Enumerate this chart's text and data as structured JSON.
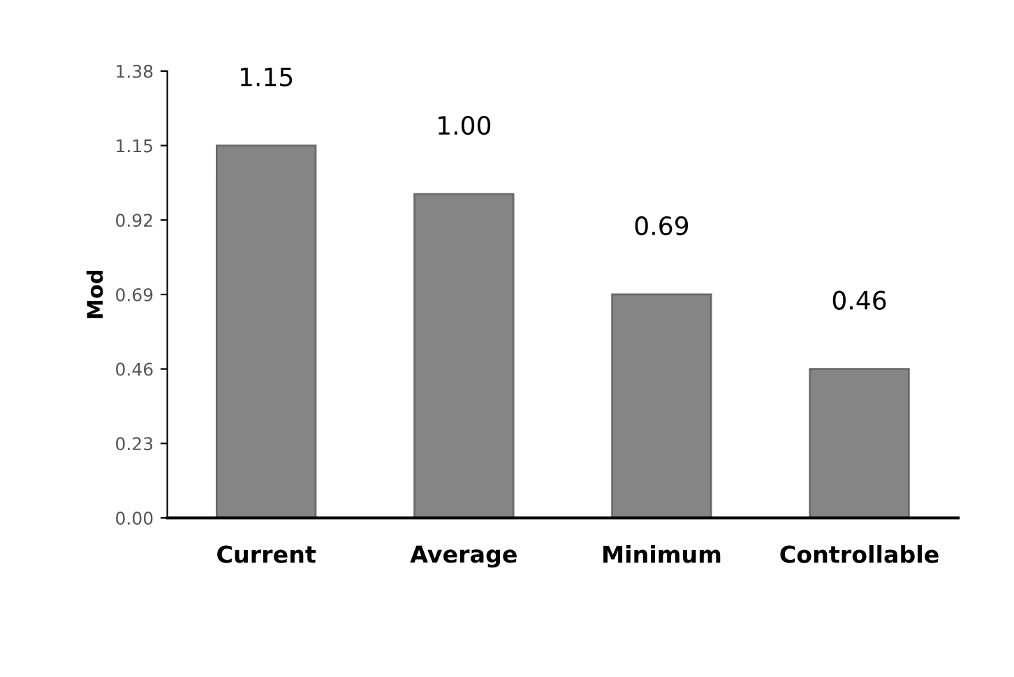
{
  "chart_data": {
    "type": "bar",
    "ylabel": "Mod",
    "categories": [
      "Current",
      "Average",
      "Minimum",
      "Controllable"
    ],
    "values": [
      1.15,
      1.0,
      0.69,
      0.46
    ],
    "value_labels": [
      "1.15",
      "1.00",
      "0.69",
      "0.46"
    ],
    "color": "#858585",
    "ylim": [
      0,
      1.38
    ],
    "yticks": [
      {
        "value": 0,
        "label": "0.00"
      },
      0.23,
      0.46,
      0.69,
      0.92,
      1.15,
      1.38
    ],
    "grid": false
  }
}
